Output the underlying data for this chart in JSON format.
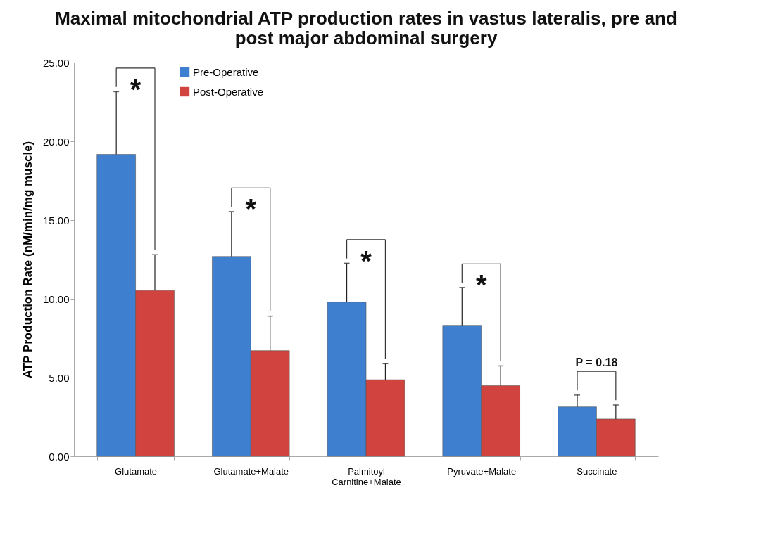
{
  "chart_data": {
    "type": "bar",
    "title": "Maximal mitochondrial ATP production rates in vastus lateralis, pre and post major abdominal surgery",
    "ylabel": "ATP Production Rate (nM/min/mg muscle)",
    "categories": [
      "Glutamate",
      "Glutamate+Malate",
      "Palmitoyl Carnitine+Malate",
      "Pyruvate+Malate",
      "Succinate"
    ],
    "series": [
      {
        "name": "Pre-Operative",
        "color": "#3f7fcf",
        "values": [
          19.17,
          12.69,
          9.79,
          8.32,
          3.14
        ],
        "errors": [
          [
            19.17,
            23.15
          ],
          [
            12.69,
            15.54
          ],
          [
            9.79,
            12.26
          ],
          [
            8.32,
            10.72
          ],
          [
            3.14,
            3.89
          ]
        ]
      },
      {
        "name": "Post-Operative",
        "color": "#d0433e",
        "values": [
          10.53,
          6.71,
          4.86,
          4.49,
          2.37
        ],
        "errors": [
          [
            10.53,
            12.8
          ],
          [
            6.71,
            8.9
          ],
          [
            4.86,
            5.88
          ],
          [
            4.49,
            5.74
          ],
          [
            2.37,
            3.26
          ]
        ]
      }
    ],
    "ylim": [
      0,
      25
    ],
    "yticks": [
      {
        "value": 0,
        "label": "0.00"
      },
      {
        "value": 5,
        "label": "5.00"
      },
      {
        "value": 10,
        "label": "10.00"
      },
      {
        "value": 15,
        "label": "15.00"
      },
      {
        "value": 20,
        "label": "20.00"
      },
      {
        "value": 25,
        "label": "25.00"
      }
    ],
    "annotations": [
      "*",
      "*",
      "*",
      "*",
      "P = 0.18"
    ],
    "legend": "top left",
    "grid": false
  }
}
